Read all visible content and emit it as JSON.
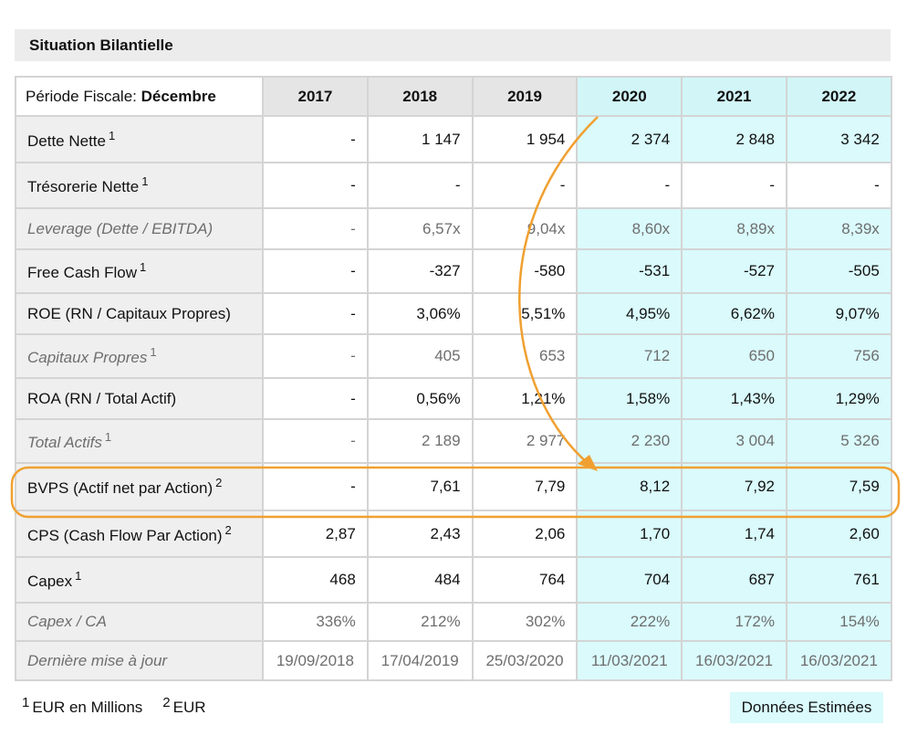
{
  "section_title": "Situation Bilantielle",
  "table": {
    "period_label": "Période Fiscale:",
    "period_value": "Décembre",
    "years": [
      "2017",
      "2018",
      "2019",
      "2020",
      "2021",
      "2022"
    ],
    "rows": [
      {
        "label": "Dette Nette",
        "sup": "1",
        "values": [
          "-",
          "1 147",
          "1 954",
          "2 374",
          "2 848",
          "3 342"
        ]
      },
      {
        "label": "Trésorerie Nette",
        "sup": "1",
        "values": [
          "-",
          "-",
          "-",
          "-",
          "-",
          "-"
        ]
      },
      {
        "label": "Leverage (Dette / EBITDA)",
        "sup": "",
        "values": [
          "-",
          "6,57x",
          "9,04x",
          "8,60x",
          "8,89x",
          "8,39x"
        ]
      },
      {
        "label": "Free Cash Flow",
        "sup": "1",
        "values": [
          "-",
          "-327",
          "-580",
          "-531",
          "-527",
          "-505"
        ]
      },
      {
        "label": "ROE (RN / Capitaux Propres)",
        "sup": "",
        "values": [
          "-",
          "3,06%",
          "5,51%",
          "4,95%",
          "6,62%",
          "9,07%"
        ]
      },
      {
        "label": "Capitaux Propres",
        "sup": "1",
        "values": [
          "-",
          "405",
          "653",
          "712",
          "650",
          "756"
        ]
      },
      {
        "label": "ROA (RN / Total Actif)",
        "sup": "",
        "values": [
          "-",
          "0,56%",
          "1,21%",
          "1,58%",
          "1,43%",
          "1,29%"
        ]
      },
      {
        "label": "Total Actifs",
        "sup": "1",
        "values": [
          "-",
          "2 189",
          "2 977",
          "2 230",
          "3 004",
          "5 326"
        ]
      },
      {
        "label": "BVPS (Actif net par Action)",
        "sup": "2",
        "values": [
          "-",
          "7,61",
          "7,79",
          "8,12",
          "7,92",
          "7,59"
        ]
      },
      {
        "label": "CPS (Cash Flow Par Action)",
        "sup": "2",
        "values": [
          "2,87",
          "2,43",
          "2,06",
          "1,70",
          "1,74",
          "2,60"
        ]
      },
      {
        "label": "Capex",
        "sup": "1",
        "values": [
          "468",
          "484",
          "764",
          "704",
          "687",
          "761"
        ]
      },
      {
        "label": "Capex / CA",
        "sup": "",
        "values": [
          "336%",
          "212%",
          "302%",
          "222%",
          "172%",
          "154%"
        ]
      },
      {
        "label": "Dernière mise à jour",
        "sup": "",
        "values": [
          "19/09/2018",
          "17/04/2019",
          "25/03/2020",
          "11/03/2021",
          "16/03/2021",
          "16/03/2021"
        ]
      }
    ]
  },
  "footnotes": {
    "note1_mark": "1",
    "note1_text": "EUR en Millions",
    "note2_mark": "2",
    "note2_text": "EUR"
  },
  "estimated_badge": "Données Estimées",
  "colors": {
    "highlight_orange": "#f0a030",
    "estimate_cyan": "#dafafc",
    "header_gray": "#e5e5e5",
    "label_gray": "#efefef"
  }
}
